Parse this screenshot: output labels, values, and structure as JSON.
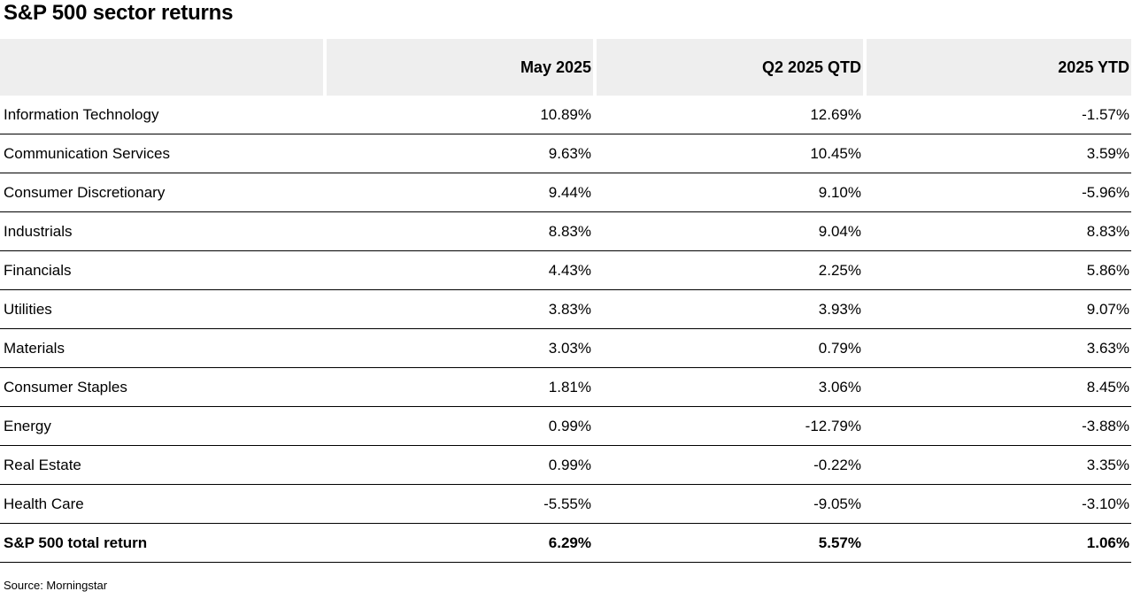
{
  "chart_data": {
    "type": "table",
    "title": "S&P 500 sector returns",
    "columns": [
      "",
      "May 2025",
      "Q2 2025 QTD",
      "2025 YTD"
    ],
    "rows": [
      {
        "sector": "Information Technology",
        "values": [
          "10.89%",
          "12.69%",
          "-1.57%"
        ]
      },
      {
        "sector": "Communication Services",
        "values": [
          "9.63%",
          "10.45%",
          "3.59%"
        ]
      },
      {
        "sector": "Consumer Discretionary",
        "values": [
          "9.44%",
          "9.10%",
          "-5.96%"
        ]
      },
      {
        "sector": "Industrials",
        "values": [
          "8.83%",
          "9.04%",
          "8.83%"
        ]
      },
      {
        "sector": "Financials",
        "values": [
          "4.43%",
          "2.25%",
          "5.86%"
        ]
      },
      {
        "sector": "Utilities",
        "values": [
          "3.83%",
          "3.93%",
          "9.07%"
        ]
      },
      {
        "sector": "Materials",
        "values": [
          "3.03%",
          "0.79%",
          "3.63%"
        ]
      },
      {
        "sector": "Consumer Staples",
        "values": [
          "1.81%",
          "3.06%",
          "8.45%"
        ]
      },
      {
        "sector": "Energy",
        "values": [
          "0.99%",
          "-12.79%",
          "-3.88%"
        ]
      },
      {
        "sector": "Real Estate",
        "values": [
          "0.99%",
          "-0.22%",
          "3.35%"
        ]
      },
      {
        "sector": "Health Care",
        "values": [
          "-5.55%",
          "-9.05%",
          "-3.10%"
        ]
      }
    ],
    "total": {
      "sector": "S&P 500 total return",
      "values": [
        "6.29%",
        "5.57%",
        "1.06%"
      ]
    },
    "source": "Source: Morningstar",
    "colors": {
      "header_bg": "#eeeeee",
      "rule": "#000000"
    }
  }
}
